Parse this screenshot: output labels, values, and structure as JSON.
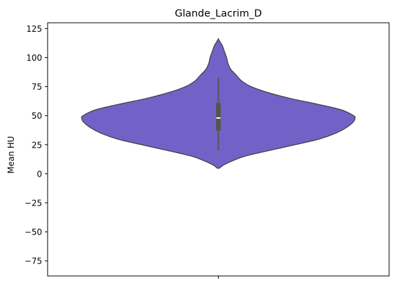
{
  "chart_data": {
    "type": "violin",
    "title": "Glande_Lacrim_D",
    "xlabel": "",
    "ylabel": "Mean HU",
    "ylim": [
      -88,
      130
    ],
    "yticks": [
      -75,
      -50,
      -25,
      0,
      25,
      50,
      75,
      100,
      125
    ],
    "ytick_labels": [
      "−75",
      "−50",
      "−25",
      "0",
      "25",
      "50",
      "75",
      "100",
      "125"
    ],
    "grid": false,
    "legend": "none",
    "color": "#7262C8",
    "outline_color": "#4a4a55",
    "box_color": "#555555",
    "violin": {
      "min": 5,
      "max": 116,
      "density_profile": [
        [
          5,
          0.01
        ],
        [
          7,
          0.03
        ],
        [
          10,
          0.08
        ],
        [
          15,
          0.19
        ],
        [
          20,
          0.37
        ],
        [
          25,
          0.56
        ],
        [
          30,
          0.74
        ],
        [
          35,
          0.86
        ],
        [
          40,
          0.94
        ],
        [
          45,
          0.99
        ],
        [
          48,
          1.0
        ],
        [
          50,
          0.99
        ],
        [
          55,
          0.9
        ],
        [
          60,
          0.72
        ],
        [
          65,
          0.52
        ],
        [
          70,
          0.36
        ],
        [
          75,
          0.24
        ],
        [
          80,
          0.17
        ],
        [
          85,
          0.13
        ],
        [
          90,
          0.09
        ],
        [
          95,
          0.07
        ],
        [
          100,
          0.06
        ],
        [
          105,
          0.045
        ],
        [
          110,
          0.03
        ],
        [
          113,
          0.015
        ],
        [
          116,
          0.0
        ]
      ],
      "whisker_low": 20,
      "q1": 37,
      "median": 48,
      "q3": 61,
      "whisker_high": 83
    }
  }
}
